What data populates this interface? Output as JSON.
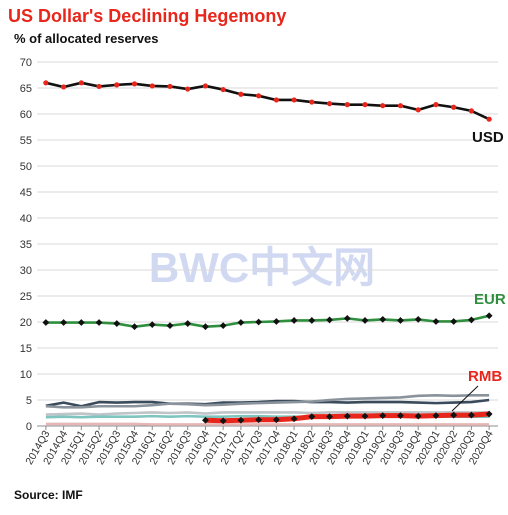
{
  "title": "US Dollar's  Declining Hegemony",
  "subtitle": "% of allocated reserves",
  "source": "Source: IMF",
  "watermark": "BWC中文网",
  "colors": {
    "title": "#e8261b",
    "usd_line": "#111111",
    "usd_marker": "#e8261b",
    "usd_label": "#111111",
    "eur_line": "#2f8f3e",
    "eur_marker": "#111111",
    "eur_label": "#2f8f3e",
    "rmb_line": "#e8261b",
    "rmb_marker": "#111111",
    "rmb_label": "#e8261b",
    "grid": "#d9d9d9"
  },
  "chart_data": {
    "type": "line",
    "title": "US Dollar's  Declining Hegemony",
    "ylabel": "% of allocated reserves",
    "ylim": [
      0,
      70
    ],
    "yticks": [
      0,
      5,
      10,
      15,
      20,
      25,
      30,
      35,
      40,
      45,
      50,
      55,
      60,
      65,
      70
    ],
    "grid": true,
    "categories": [
      "2014Q3",
      "2014Q4",
      "2015Q1",
      "2015Q2",
      "2015Q3",
      "2015Q4",
      "2016Q1",
      "2016Q2",
      "2016Q3",
      "2016Q4",
      "2017Q1",
      "2017Q2",
      "2017Q3",
      "2017Q4",
      "2018Q1",
      "2018Q2",
      "2018Q3",
      "2018Q4",
      "2019Q1",
      "2019Q2",
      "2019Q3",
      "2019Q4",
      "2020Q1",
      "2020Q2",
      "2020Q3",
      "2020Q4"
    ],
    "series": [
      {
        "name": "USD",
        "key": "usd",
        "style": "highlight",
        "values": [
          66.0,
          65.2,
          66.0,
          65.3,
          65.6,
          65.8,
          65.4,
          65.3,
          64.8,
          65.4,
          64.7,
          63.8,
          63.5,
          62.7,
          62.7,
          62.3,
          62.0,
          61.8,
          61.8,
          61.6,
          61.6,
          60.8,
          61.8,
          61.3,
          60.6,
          59.0
        ]
      },
      {
        "name": "EUR",
        "key": "eur",
        "style": "highlight",
        "values": [
          19.9,
          19.9,
          19.9,
          19.9,
          19.7,
          19.1,
          19.5,
          19.3,
          19.7,
          19.1,
          19.3,
          19.9,
          20.0,
          20.1,
          20.3,
          20.3,
          20.4,
          20.7,
          20.3,
          20.5,
          20.3,
          20.5,
          20.1,
          20.1,
          20.4,
          21.2
        ]
      },
      {
        "name": "RMB",
        "key": "rmb",
        "style": "highlight",
        "values": [
          null,
          null,
          null,
          null,
          null,
          null,
          null,
          null,
          null,
          1.1,
          1.0,
          1.1,
          1.2,
          1.2,
          1.4,
          1.8,
          1.8,
          1.9,
          1.9,
          2.0,
          2.0,
          1.9,
          2.0,
          2.1,
          2.1,
          2.3
        ]
      },
      {
        "name": "",
        "key": "other1",
        "style": "plain",
        "color": "#3a4b5c",
        "values": [
          3.9,
          4.5,
          3.8,
          4.6,
          4.5,
          4.6,
          4.6,
          4.3,
          4.3,
          4.2,
          4.5,
          4.5,
          4.6,
          4.8,
          4.8,
          4.6,
          4.6,
          4.5,
          4.6,
          4.6,
          4.6,
          4.5,
          4.4,
          4.5,
          4.6,
          5.0
        ]
      },
      {
        "name": "",
        "key": "other2",
        "style": "plain",
        "color": "#8a939c",
        "values": [
          3.8,
          3.6,
          3.6,
          3.8,
          3.8,
          3.8,
          4.0,
          4.3,
          4.2,
          4.0,
          4.1,
          4.3,
          4.4,
          4.5,
          4.6,
          4.7,
          5.0,
          5.2,
          5.3,
          5.4,
          5.5,
          5.8,
          5.9,
          5.8,
          5.9,
          5.9
        ]
      },
      {
        "name": "",
        "key": "other3",
        "style": "plain",
        "color": "#bfc4c8",
        "values": [
          2.2,
          2.3,
          2.4,
          2.2,
          2.4,
          2.5,
          2.6,
          2.5,
          2.6,
          2.4,
          2.6,
          2.6,
          2.6,
          2.6,
          2.6,
          2.5,
          2.6,
          2.6,
          2.6,
          2.6,
          2.6,
          2.6,
          2.6,
          2.6,
          2.6,
          2.6
        ]
      },
      {
        "name": "",
        "key": "other4",
        "style": "plain",
        "color": "#7ec5c0",
        "values": [
          1.7,
          1.8,
          1.7,
          1.8,
          1.8,
          1.8,
          1.9,
          1.8,
          1.9,
          1.8,
          1.8,
          1.9,
          1.9,
          1.8,
          1.8,
          1.8,
          1.8,
          1.8,
          1.9,
          1.8,
          1.8,
          1.8,
          1.8,
          1.8,
          1.8,
          1.8
        ]
      },
      {
        "name": "",
        "key": "other5",
        "style": "plain",
        "color": "#e6b6b6",
        "values": [
          0.4,
          0.4,
          0.4,
          0.4,
          0.4,
          0.4,
          0.3,
          0.3,
          0.3,
          0.3,
          0.3,
          0.3,
          0.3,
          0.3,
          0.3,
          0.3,
          0.3,
          0.3,
          0.3,
          0.3,
          0.3,
          0.3,
          0.3,
          0.3,
          0.3,
          0.3
        ]
      }
    ]
  }
}
